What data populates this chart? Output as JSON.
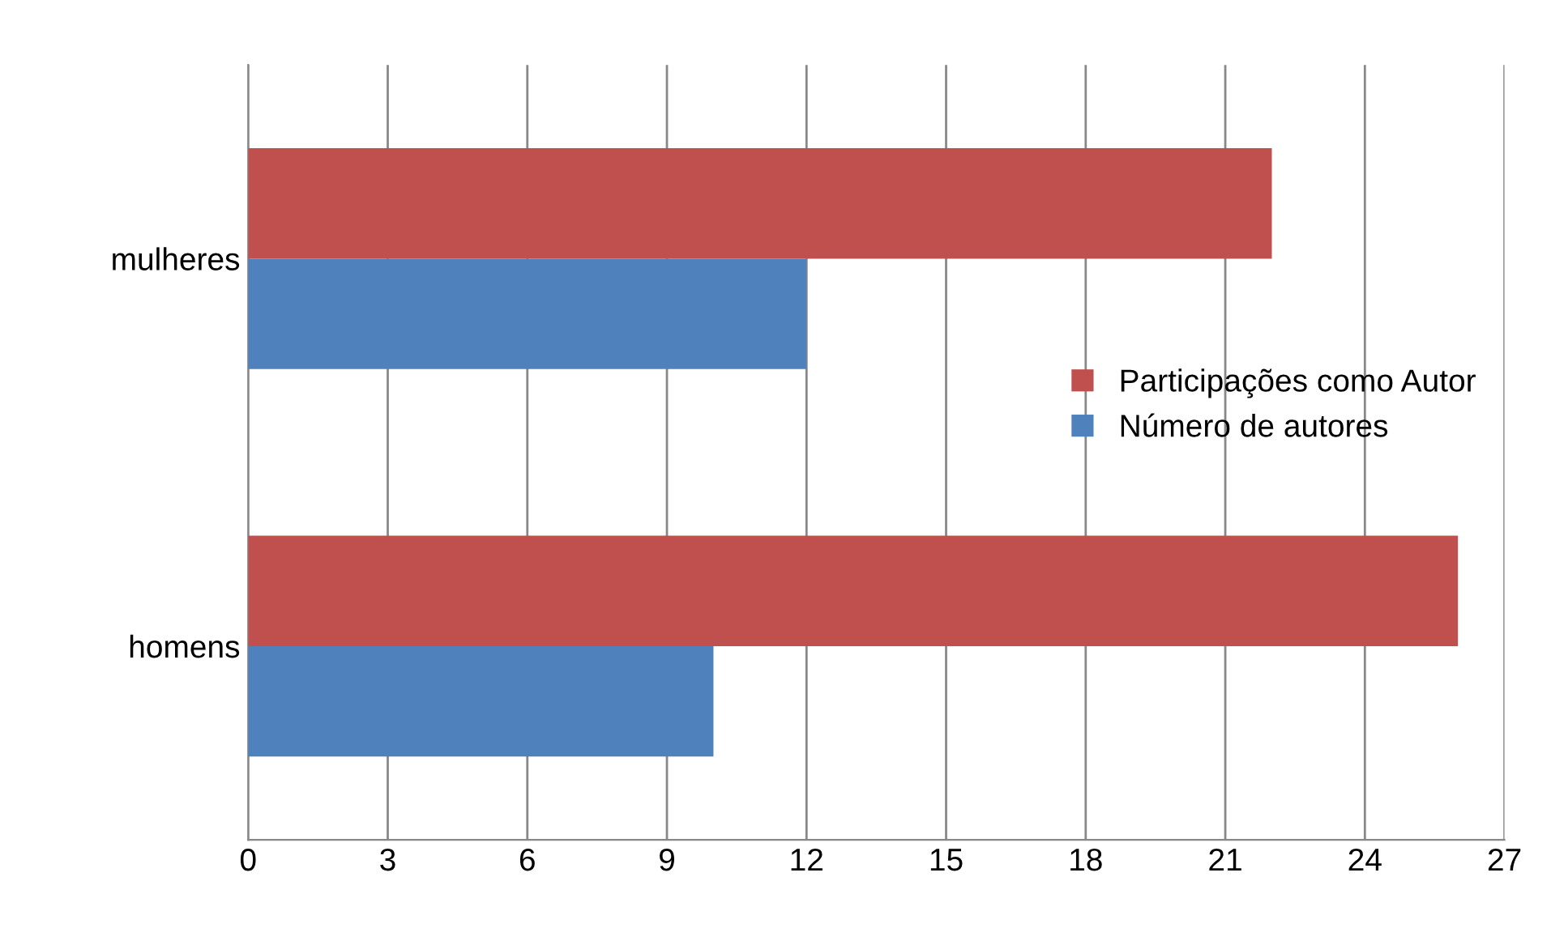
{
  "chart_data": {
    "type": "bar",
    "orientation": "horizontal",
    "categories": [
      "mulheres",
      "homens"
    ],
    "series": [
      {
        "name": "Participações como Autor",
        "color": "#c0504d",
        "values": [
          22,
          26
        ]
      },
      {
        "name": "Número de autores",
        "color": "#4f81bd",
        "values": [
          12,
          10
        ]
      }
    ],
    "xlim": [
      0,
      27
    ],
    "xticks": [
      0,
      3,
      6,
      9,
      12,
      15,
      18,
      21,
      24,
      27
    ],
    "grid": "x",
    "legend": "right"
  }
}
